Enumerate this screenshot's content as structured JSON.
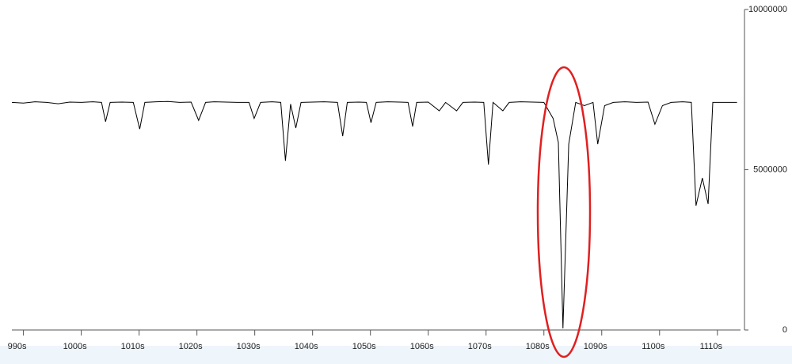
{
  "chart_data": {
    "type": "line",
    "x": [
      988,
      990,
      992,
      994,
      996,
      998,
      1000,
      1002,
      1003.5,
      1004.2,
      1005,
      1007,
      1009,
      1010.1,
      1011,
      1013,
      1015,
      1017,
      1019,
      1020.3,
      1021.5,
      1023,
      1025,
      1027,
      1029,
      1029.9,
      1031,
      1033,
      1034.5,
      1035.3,
      1036.2,
      1037.1,
      1038,
      1040,
      1042,
      1044.3,
      1045.2,
      1046,
      1048,
      1049.3,
      1050.1,
      1051,
      1053,
      1055,
      1056.5,
      1057.3,
      1058,
      1060,
      1061.9,
      1063,
      1064.9,
      1066,
      1068,
      1069.6,
      1070.4,
      1071.2,
      1072.9,
      1074,
      1076,
      1078,
      1080,
      1081.6,
      1082.5,
      1083.3,
      1084.3,
      1085.5,
      1087,
      1088.5,
      1089.3,
      1090.5,
      1092,
      1094,
      1096,
      1098,
      1099.2,
      1100.5,
      1102,
      1104,
      1105.5,
      1106.3,
      1107.4,
      1108.4,
      1109.2,
      1111,
      1113.4
    ],
    "series": [
      {
        "color": "#000000",
        "values": [
          7100000,
          7080000,
          7120000,
          7100000,
          7060000,
          7110000,
          7100000,
          7120000,
          7100000,
          6500000,
          7100000,
          7110000,
          7100000,
          6270000,
          7100000,
          7120000,
          7130000,
          7100000,
          7110000,
          6540000,
          7100000,
          7120000,
          7110000,
          7100000,
          7100000,
          6600000,
          7100000,
          7120000,
          7100000,
          5280000,
          7050000,
          6300000,
          7100000,
          7110000,
          7120000,
          7100000,
          6050000,
          7100000,
          7110000,
          7100000,
          6470000,
          7100000,
          7120000,
          7110000,
          7100000,
          6350000,
          7100000,
          7110000,
          6840000,
          7100000,
          6840000,
          7100000,
          7110000,
          7100000,
          5160000,
          7100000,
          6840000,
          7100000,
          7120000,
          7110000,
          7100000,
          6600000,
          5850000,
          50000,
          5800000,
          7100000,
          7000000,
          7100000,
          5800000,
          7000000,
          7100000,
          7120000,
          7100000,
          7110000,
          6420000,
          7000000,
          7100000,
          7120000,
          7100000,
          3880000,
          4740000,
          3930000,
          7100000,
          7100000,
          7100000
        ]
      }
    ],
    "xlim": [
      988,
      1114
    ],
    "xticks": [
      {
        "value": 990,
        "label": "990s"
      },
      {
        "value": 1000,
        "label": "1000s"
      },
      {
        "value": 1010,
        "label": "1010s"
      },
      {
        "value": 1020,
        "label": "1020s"
      },
      {
        "value": 1030,
        "label": "1030s"
      },
      {
        "value": 1040,
        "label": "1040s"
      },
      {
        "value": 1050,
        "label": "1050s"
      },
      {
        "value": 1060,
        "label": "1060s"
      },
      {
        "value": 1070,
        "label": "1070s"
      },
      {
        "value": 1080,
        "label": "1080s"
      },
      {
        "value": 1090,
        "label": "1090s"
      },
      {
        "value": 1100,
        "label": "1100s"
      },
      {
        "value": 1110,
        "label": "1110s"
      }
    ],
    "ylim": [
      0,
      10000000
    ],
    "yticks": [
      0,
      5000000,
      10000000
    ]
  }
}
